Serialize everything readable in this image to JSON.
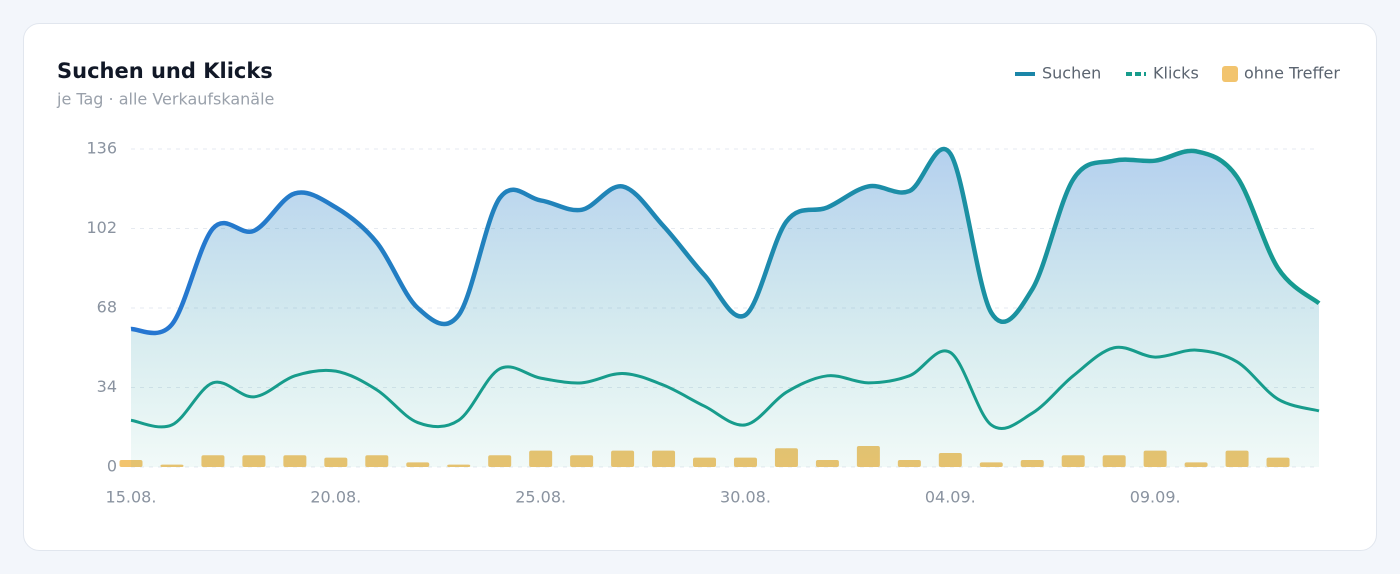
{
  "chart_data": {
    "type": "line",
    "title": "Suchen und Klicks",
    "subtitle": "je Tag · alle Verkaufskanäle",
    "categories": [
      "15.08.",
      null,
      null,
      null,
      null,
      "20.08.",
      null,
      null,
      null,
      null,
      "25.08.",
      null,
      null,
      null,
      null,
      "30.08.",
      null,
      null,
      null,
      null,
      "04.09.",
      null,
      null,
      null,
      null,
      "09.09.",
      null,
      null,
      null,
      null
    ],
    "series": [
      {
        "name": "Suchen",
        "color": "#1f7fc4",
        "values": [
          59,
          61,
          102,
          101,
          117,
          111,
          96,
          68,
          65,
          115,
          114,
          110,
          120,
          103,
          82,
          65,
          105,
          111,
          120,
          118,
          134,
          66,
          76,
          123,
          131,
          131,
          135,
          124,
          85,
          70
        ]
      },
      {
        "name": "Klicks",
        "color": "#179c8c",
        "values": [
          20,
          18,
          36,
          30,
          39,
          41,
          33,
          19,
          20,
          42,
          38,
          36,
          40,
          35,
          26,
          18,
          32,
          39,
          36,
          39,
          49,
          18,
          23,
          39,
          51,
          47,
          50,
          45,
          29,
          24
        ]
      },
      {
        "name": "ohne Treffer",
        "color": "#f2c46e",
        "values": [
          3,
          1,
          5,
          5,
          5,
          4,
          5,
          2,
          1,
          5,
          7,
          5,
          7,
          7,
          4,
          4,
          8,
          3,
          9,
          3,
          6,
          2,
          3,
          5,
          5,
          7,
          2,
          7,
          4,
          null
        ]
      }
    ],
    "ylim": [
      0,
      136
    ],
    "yticks": [
      0,
      34,
      68,
      102,
      136
    ],
    "grid": true
  }
}
